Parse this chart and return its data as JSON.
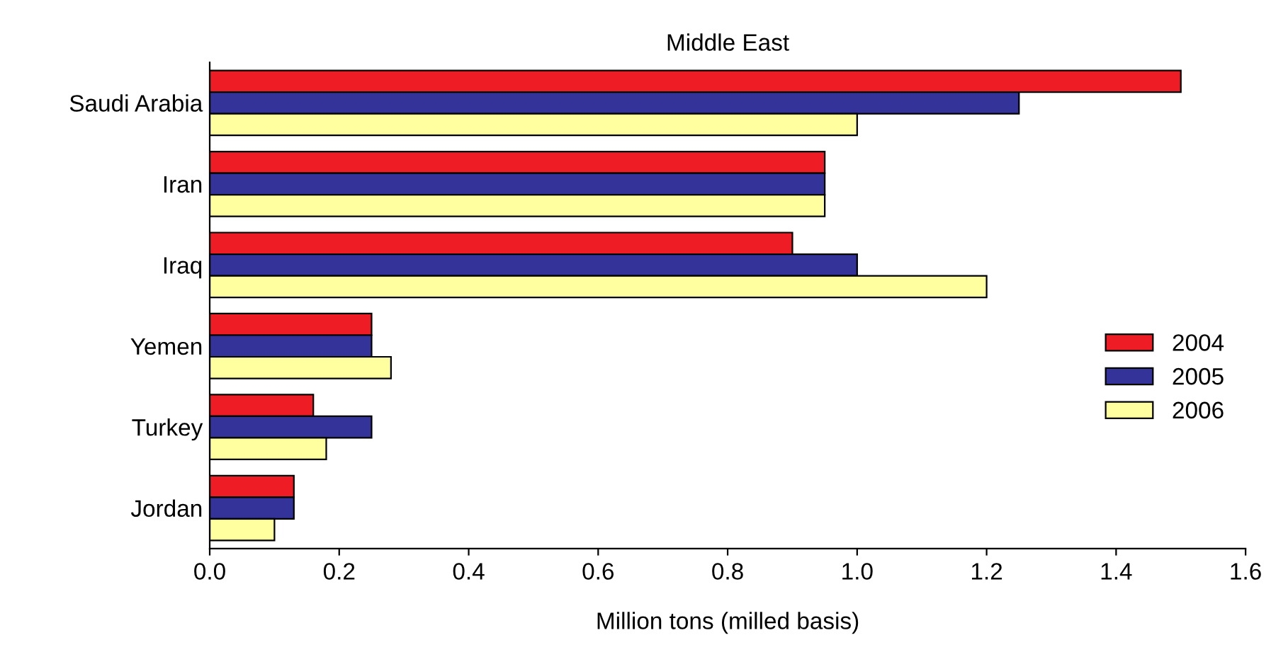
{
  "chart_data": {
    "type": "bar",
    "orientation": "horizontal",
    "title": "Middle East",
    "xlabel": "Million tons (milled basis)",
    "categories": [
      "Saudi Arabia",
      "Iran",
      "Iraq",
      "Yemen",
      "Turkey",
      "Jordan"
    ],
    "series": [
      {
        "name": "2004",
        "color": "#ee1c24",
        "values": [
          1.5,
          0.95,
          0.9,
          0.25,
          0.16,
          0.13
        ]
      },
      {
        "name": "2005",
        "color": "#333399",
        "values": [
          1.25,
          0.95,
          1.0,
          0.25,
          0.25,
          0.13
        ]
      },
      {
        "name": "2006",
        "color": "#ffffa0",
        "values": [
          1.0,
          0.95,
          1.2,
          0.28,
          0.18,
          0.1
        ]
      }
    ],
    "xlim": [
      0,
      1.6
    ],
    "xticks": [
      {
        "value": 0,
        "label": "0.0"
      },
      {
        "value": 0.2,
        "label": "0.2"
      },
      {
        "value": 0.4,
        "label": "0.4"
      },
      {
        "value": 0.6,
        "label": "0.6"
      },
      {
        "value": 0.8,
        "label": "0.8"
      },
      {
        "value": 1,
        "label": "1.0"
      },
      {
        "value": 1.2,
        "label": "1.2"
      },
      {
        "value": 1.4,
        "label": "1.4"
      },
      {
        "value": 1.6,
        "label": "1.6"
      }
    ],
    "grid": false,
    "legend": "right"
  }
}
